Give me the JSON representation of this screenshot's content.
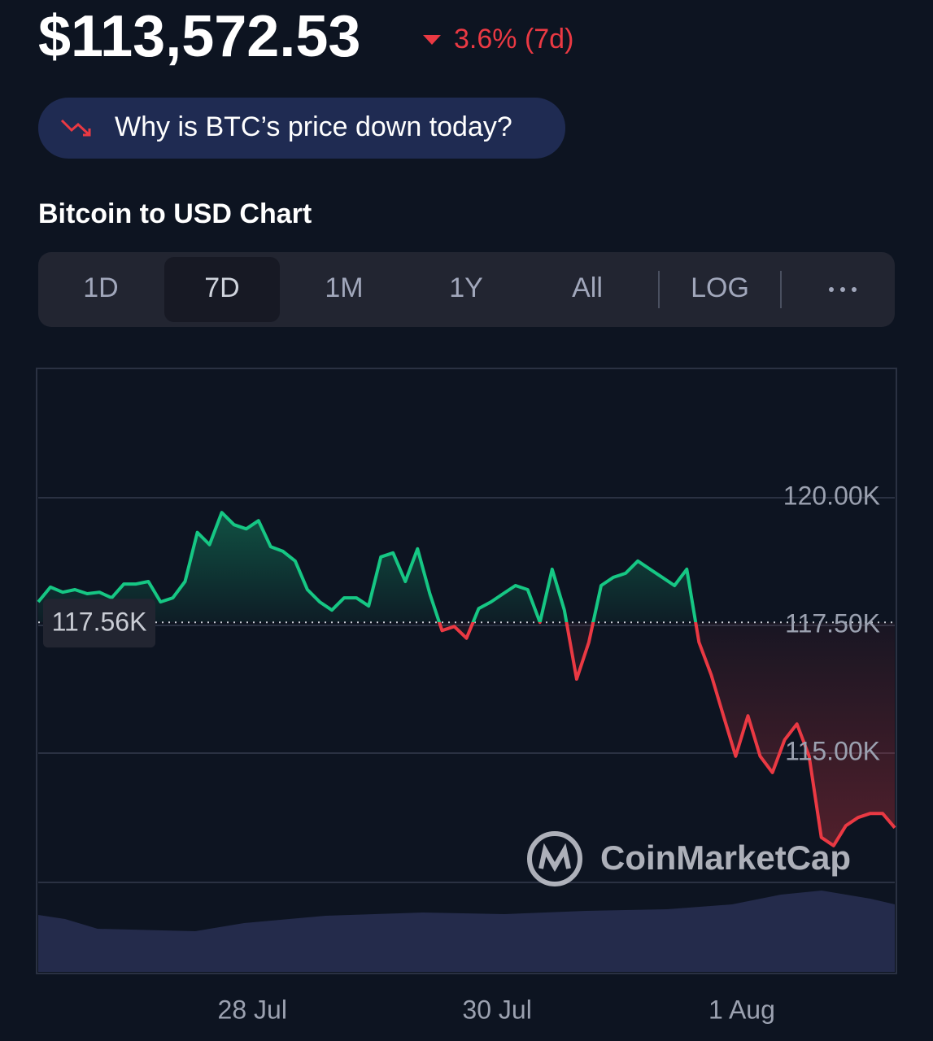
{
  "header": {
    "price": "$113,572.53",
    "change": "3.6% (7d)",
    "banner": "Why is BTC’s price down today?",
    "chart_title": "Bitcoin to USD Chart"
  },
  "tabs": [
    "1D",
    "7D",
    "1M",
    "1Y",
    "All",
    "LOG"
  ],
  "chart_data": {
    "type": "line",
    "watermark": "CoinMarketCap",
    "xlim": [
      0,
      70
    ],
    "xticks": [
      {
        "value": 17.5,
        "label": "28 Jul"
      },
      {
        "value": 37.5,
        "label": "30 Jul"
      },
      {
        "value": 57.5,
        "label": "1 Aug"
      }
    ],
    "ylim": [
      112470,
      122530
    ],
    "yticks": [
      {
        "value": 115000,
        "label": "115.00K"
      },
      {
        "value": 117500,
        "label": "117.50K"
      },
      {
        "value": 120000,
        "label": "120.00K"
      }
    ],
    "baseline": {
      "value": 117560,
      "label": "117.56K"
    },
    "line_colors": {
      "above": "#16c784",
      "below": "#ea3943"
    },
    "grid": true,
    "values": [
      117960,
      118250,
      118150,
      118200,
      118120,
      118150,
      118040,
      118310,
      118310,
      118360,
      117960,
      118040,
      118360,
      119320,
      119080,
      119710,
      119470,
      119390,
      119550,
      119040,
      118950,
      118760,
      118200,
      117960,
      117800,
      118040,
      118040,
      117880,
      118840,
      118920,
      118360,
      119000,
      118120,
      117400,
      117480,
      117250,
      117830,
      117960,
      118120,
      118280,
      118200,
      117560,
      118600,
      117800,
      116450,
      117170,
      118280,
      118440,
      118520,
      118760,
      118600,
      118440,
      118280,
      118600,
      117170,
      116530,
      115730,
      114940,
      115730,
      114940,
      114620,
      115260,
      115570,
      114940,
      113350,
      113190,
      113580,
      113740,
      113820,
      113820,
      113540
    ]
  }
}
